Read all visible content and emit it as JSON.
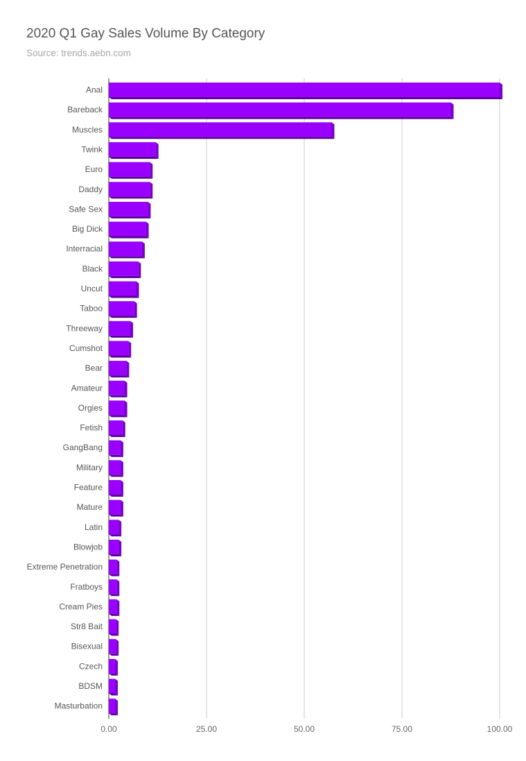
{
  "header": {
    "title": "2020 Q1 Gay Sales Volume By Category",
    "subtitle": "Source: trends.aebn.com"
  },
  "colors": {
    "bar_front": "#9900ff",
    "bar_side": "#7a00cc",
    "bar_bottom": "#5c0099",
    "gridline": "#cccccc",
    "axis": "#333333"
  },
  "chart_data": {
    "type": "bar",
    "orientation": "horizontal",
    "title": "2020 Q1 Gay Sales Volume By Category",
    "subtitle": "Source: trends.aebn.com",
    "categories": [
      "Anal",
      "Bareback",
      "Muscles",
      "Twink",
      "Euro",
      "Daddy",
      "Safe Sex",
      "Big Dick",
      "Interracial",
      "Black",
      "Uncut",
      "Taboo",
      "Threeway",
      "Cumshot",
      "Bear",
      "Amateur",
      "Orgies",
      "Fetish",
      "GangBang",
      "Military",
      "Feature",
      "Mature",
      "Latin",
      "Blowjob",
      "Extreme Penetration",
      "Fratboys",
      "Cream Pies",
      "Str8 Bait",
      "Bisexual",
      "Czech",
      "BDSM",
      "Masturbation"
    ],
    "values": [
      100,
      87.5,
      57,
      12,
      10.5,
      10.5,
      10,
      9.5,
      8.5,
      7.5,
      7,
      6.5,
      5.5,
      5,
      4.5,
      4,
      4,
      3.5,
      3,
      3,
      3,
      3,
      2.5,
      2.5,
      2,
      2,
      2,
      1.8,
      1.8,
      1.6,
      1.6,
      1.6
    ],
    "xlim": [
      0,
      100
    ],
    "xticks": [
      "0.00",
      "25.00",
      "50.00",
      "75.00",
      "100.00"
    ],
    "xtick_values": [
      0,
      25,
      50,
      75,
      100
    ],
    "grid": true,
    "legend": "none"
  }
}
